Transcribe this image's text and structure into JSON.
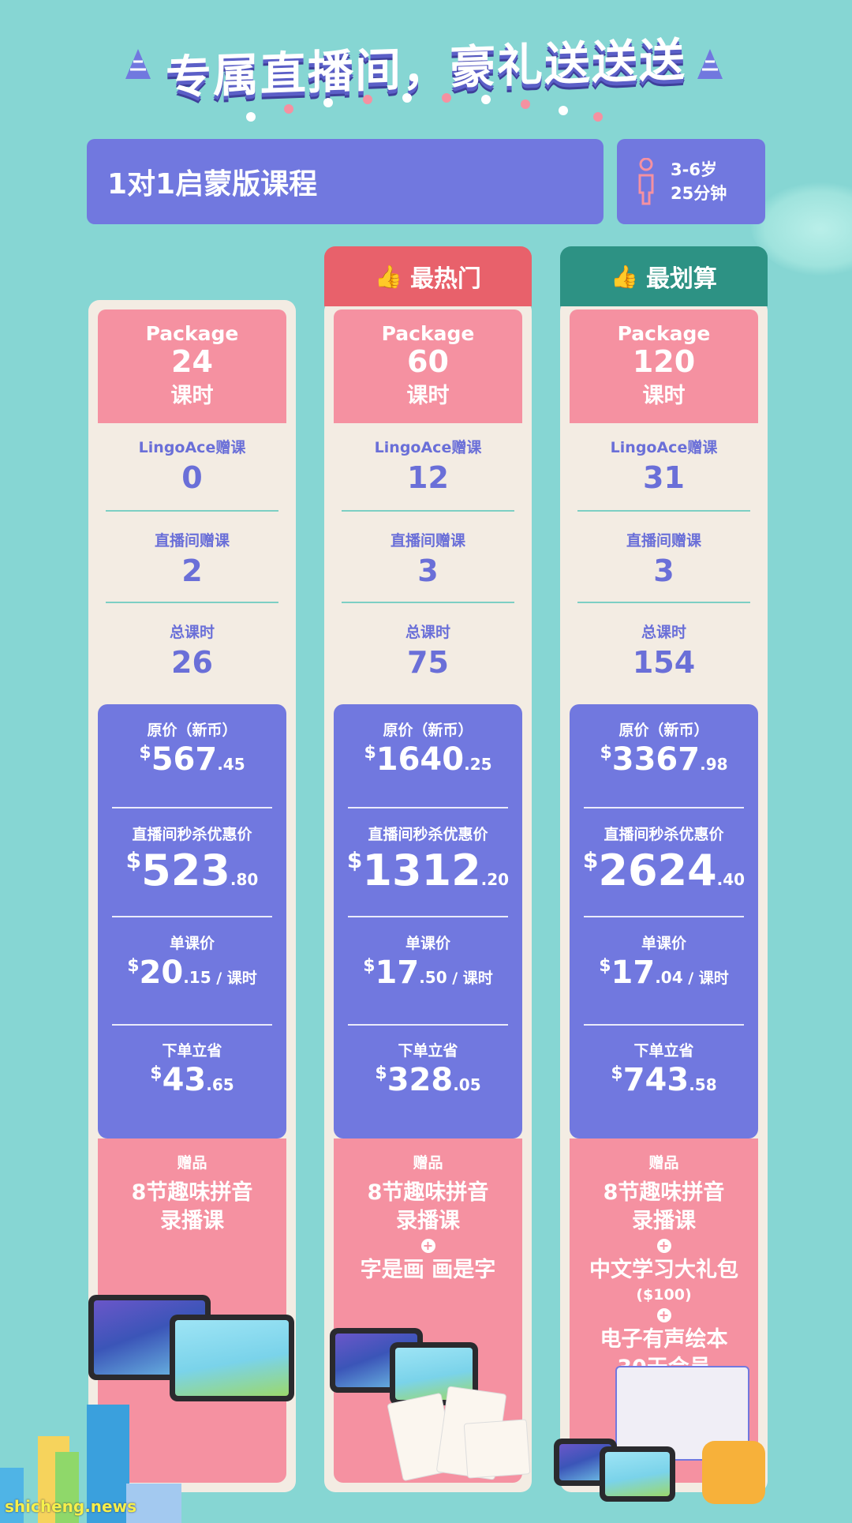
{
  "header": {
    "title": "专属直播间，豪礼送送送"
  },
  "course": {
    "name": "1对1启蒙版课程",
    "age": "3-6岁",
    "duration": "25分钟"
  },
  "ribbons": {
    "hot": "最热门",
    "value": "最划算"
  },
  "packages": [
    {
      "label": "Package",
      "hours": "24",
      "unit": "课时",
      "bonus_label": "LingoAce赠课",
      "bonus": "0",
      "live_label": "直播间赠课",
      "live": "2",
      "total_label": "总课时",
      "total": "26",
      "orig_label": "原价（新币）",
      "orig_cur": "$",
      "orig_int": "567",
      "orig_dec": ".45",
      "flash_label": "直播间秒杀优惠价",
      "flash_cur": "$",
      "flash_int": "523",
      "flash_dec": ".80",
      "unit_label": "单课价",
      "unit_cur": "$",
      "unit_int": "20",
      "unit_dec": ".15",
      "per_unit": " / 课时",
      "save_label": "下单立省",
      "save_cur": "$",
      "save_int": "43",
      "save_dec": ".65",
      "gift_label": "赠品",
      "gift1a": "8节趣味拼音",
      "gift1b": "录播课"
    },
    {
      "label": "Package",
      "hours": "60",
      "unit": "课时",
      "bonus_label": "LingoAce赠课",
      "bonus": "12",
      "live_label": "直播间赠课",
      "live": "3",
      "total_label": "总课时",
      "total": "75",
      "orig_label": "原价（新币）",
      "orig_cur": "$",
      "orig_int": "1640",
      "orig_dec": ".25",
      "flash_label": "直播间秒杀优惠价",
      "flash_cur": "$",
      "flash_int": "1312",
      "flash_dec": ".20",
      "unit_label": "单课价",
      "unit_cur": "$",
      "unit_int": "17",
      "unit_dec": ".50",
      "per_unit": " / 课时",
      "save_label": "下单立省",
      "save_cur": "$",
      "save_int": "328",
      "save_dec": ".05",
      "gift_label": "赠品",
      "gift1a": "8节趣味拼音",
      "gift1b": "录播课",
      "gift2": "字是画 画是字"
    },
    {
      "label": "Package",
      "hours": "120",
      "unit": "课时",
      "bonus_label": "LingoAce赠课",
      "bonus": "31",
      "live_label": "直播间赠课",
      "live": "3",
      "total_label": "总课时",
      "total": "154",
      "orig_label": "原价（新币）",
      "orig_cur": "$",
      "orig_int": "3367",
      "orig_dec": ".98",
      "flash_label": "直播间秒杀优惠价",
      "flash_cur": "$",
      "flash_int": "2624",
      "flash_dec": ".40",
      "unit_label": "单课价",
      "unit_cur": "$",
      "unit_int": "17",
      "unit_dec": ".04",
      "per_unit": " / 课时",
      "save_label": "下单立省",
      "save_cur": "$",
      "save_int": "743",
      "save_dec": ".58",
      "gift_label": "赠品",
      "gift1a": "8节趣味拼音",
      "gift1b": "录播课",
      "gift2a": "中文学习大礼包",
      "gift2b": "($100)",
      "gift3a": "电子有声绘本",
      "gift3b": "30天会员"
    }
  ],
  "plus_sign": "+",
  "watermark": "shicheng.news",
  "colors": {
    "background": "#86d6d3",
    "purple": "#7178df",
    "pink": "#f591a1",
    "hot_red": "#e8616b",
    "value_green": "#2d9284",
    "cream": "#f3ece3"
  }
}
